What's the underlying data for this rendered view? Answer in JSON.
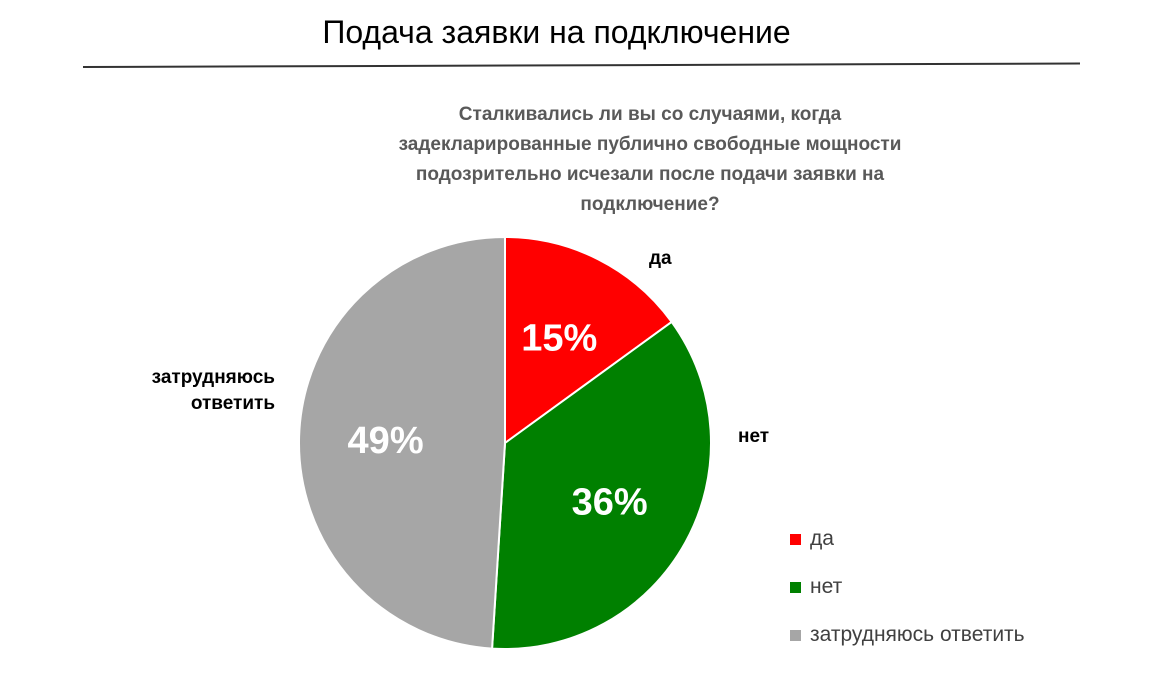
{
  "page": {
    "title": "Подача заявки на подключение"
  },
  "chart_data": {
    "type": "pie",
    "title": "Сталкивались ли вы со случаями, когда задекларированные публично свободные мощности подозрительно исчезали после подачи заявки на подключение?",
    "title_lines": [
      "Сталкивались ли вы со случаями, когда",
      "задекларированные публично свободные мощности",
      "подозрительно исчезали после подачи заявки на",
      "подключение?"
    ],
    "categories": [
      "да",
      "нет",
      "затрудняюсь ответить"
    ],
    "values": [
      15,
      36,
      49
    ],
    "value_labels": [
      "15%",
      "36%",
      "49%"
    ],
    "colors": [
      "#ff0000",
      "#008000",
      "#a6a6a6"
    ],
    "outside_labels": {
      "da": "да",
      "net": "нет",
      "zatr_line1": "затрудняюсь",
      "zatr_line2": "ответить"
    },
    "legend": {
      "position": "right",
      "items": [
        "да",
        "нет",
        "затрудняюсь ответить"
      ]
    }
  }
}
